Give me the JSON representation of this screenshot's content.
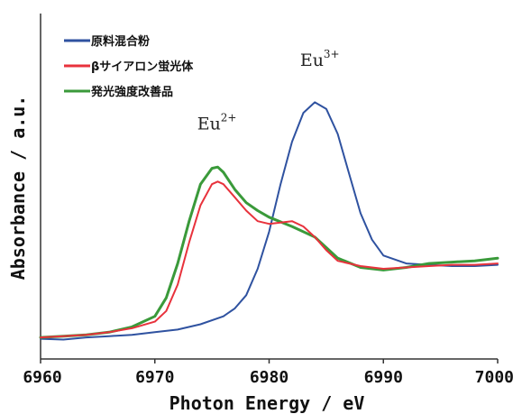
{
  "chart_data": {
    "type": "line",
    "xlabel": "Photon Energy / eV",
    "ylabel": "Absorbance / a.u.",
    "xlim": [
      6960,
      7000
    ],
    "ylim": [
      0,
      1
    ],
    "x_ticks": [
      "6960",
      "6970",
      "6980",
      "6990",
      "7000"
    ],
    "grid": false,
    "legend_position": "top-left",
    "series": [
      {
        "name": "原料混合粉",
        "color": "#2f52a0",
        "points": [
          [
            6960,
            0.015
          ],
          [
            6962,
            0.012
          ],
          [
            6964,
            0.02
          ],
          [
            6966,
            0.025
          ],
          [
            6968,
            0.03
          ],
          [
            6970,
            0.04
          ],
          [
            6972,
            0.05
          ],
          [
            6974,
            0.07
          ],
          [
            6976,
            0.1
          ],
          [
            6977,
            0.13
          ],
          [
            6978,
            0.18
          ],
          [
            6979,
            0.28
          ],
          [
            6980,
            0.42
          ],
          [
            6981,
            0.6
          ],
          [
            6982,
            0.76
          ],
          [
            6983,
            0.87
          ],
          [
            6984,
            0.91
          ],
          [
            6985,
            0.885
          ],
          [
            6986,
            0.79
          ],
          [
            6987,
            0.64
          ],
          [
            6988,
            0.49
          ],
          [
            6989,
            0.39
          ],
          [
            6990,
            0.33
          ],
          [
            6992,
            0.3
          ],
          [
            6994,
            0.295
          ],
          [
            6996,
            0.29
          ],
          [
            6998,
            0.29
          ],
          [
            7000,
            0.295
          ]
        ]
      },
      {
        "name": "βサイアロン蛍光体",
        "color": "#e8323c",
        "points": [
          [
            6960,
            0.02
          ],
          [
            6962,
            0.025
          ],
          [
            6964,
            0.03
          ],
          [
            6966,
            0.04
          ],
          [
            6968,
            0.055
          ],
          [
            6970,
            0.08
          ],
          [
            6971,
            0.12
          ],
          [
            6972,
            0.22
          ],
          [
            6973,
            0.38
          ],
          [
            6974,
            0.52
          ],
          [
            6975,
            0.6
          ],
          [
            6975.5,
            0.61
          ],
          [
            6976,
            0.6
          ],
          [
            6977,
            0.55
          ],
          [
            6978,
            0.5
          ],
          [
            6979,
            0.46
          ],
          [
            6980,
            0.45
          ],
          [
            6981,
            0.455
          ],
          [
            6982,
            0.46
          ],
          [
            6983,
            0.44
          ],
          [
            6984,
            0.4
          ],
          [
            6985,
            0.35
          ],
          [
            6986,
            0.31
          ],
          [
            6988,
            0.29
          ],
          [
            6990,
            0.28
          ],
          [
            6992,
            0.285
          ],
          [
            6994,
            0.29
          ],
          [
            6996,
            0.295
          ],
          [
            6998,
            0.295
          ],
          [
            7000,
            0.3
          ]
        ]
      },
      {
        "name": "発光強度改善品",
        "color": "#3a9a3a",
        "points": [
          [
            6960,
            0.02
          ],
          [
            6962,
            0.025
          ],
          [
            6964,
            0.03
          ],
          [
            6966,
            0.04
          ],
          [
            6968,
            0.06
          ],
          [
            6970,
            0.1
          ],
          [
            6971,
            0.17
          ],
          [
            6972,
            0.3
          ],
          [
            6973,
            0.46
          ],
          [
            6974,
            0.6
          ],
          [
            6975,
            0.66
          ],
          [
            6975.5,
            0.665
          ],
          [
            6976,
            0.645
          ],
          [
            6977,
            0.58
          ],
          [
            6978,
            0.53
          ],
          [
            6979,
            0.5
          ],
          [
            6980,
            0.475
          ],
          [
            6982,
            0.44
          ],
          [
            6984,
            0.4
          ],
          [
            6985,
            0.36
          ],
          [
            6986,
            0.32
          ],
          [
            6988,
            0.285
          ],
          [
            6990,
            0.275
          ],
          [
            6992,
            0.285
          ],
          [
            6994,
            0.3
          ],
          [
            6996,
            0.305
          ],
          [
            6998,
            0.31
          ],
          [
            7000,
            0.32
          ]
        ]
      }
    ],
    "annotations": [
      {
        "text": "Eu",
        "sup": "2+",
        "x": 6974.5,
        "y": 0.76
      },
      {
        "text": "Eu",
        "sup": "3+",
        "x": 6983.5,
        "y": 1.0
      }
    ]
  }
}
